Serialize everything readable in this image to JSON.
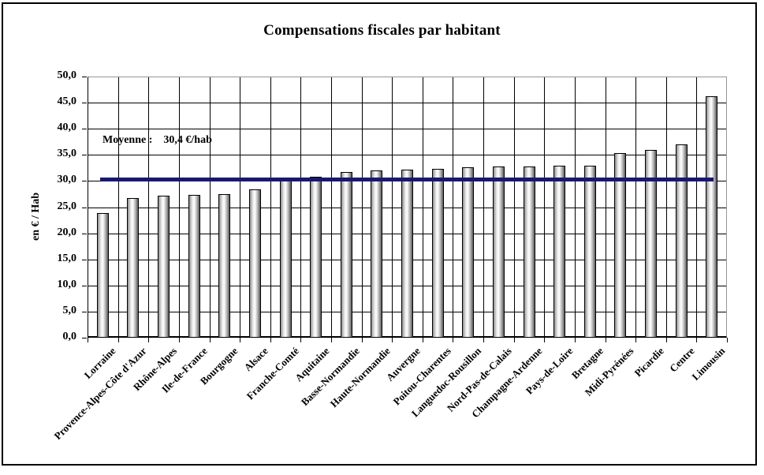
{
  "figure": {
    "title": "Compensations fiscales par habitant"
  },
  "annotation": {
    "label": "Moyenne :",
    "value": "30,4 €/hab"
  },
  "colors": {
    "mean_line": "#191970",
    "grid": "#000000",
    "plot_border_gray": "#969696",
    "bar_outline": "#000000",
    "bar_gradient": [
      "#8c8c8c",
      "#ffffff",
      "#5a5a5a"
    ],
    "text": "#000000",
    "background": "#ffffff"
  },
  "chart_data": {
    "type": "bar",
    "title": "Compensations fiscales par habitant",
    "xlabel": "",
    "ylabel": "en € / Hab",
    "ylim": [
      0,
      50
    ],
    "ytick_step": 5,
    "ytick_labels": [
      "0,0",
      "5,0",
      "10,0",
      "15,0",
      "20,0",
      "25,0",
      "30,0",
      "35,0",
      "40,0",
      "45,0",
      "50,0"
    ],
    "grid": true,
    "legend": "none",
    "categories": [
      "Lorraine",
      "Provence-Alpes-Côte d'Azur",
      "Rhône-Alpes",
      "Ile-de-France",
      "Bourgogne",
      "Alsace",
      "Franche-Comté",
      "Aquitaine",
      "Basse-Normandie",
      "Haute-Normandie",
      "Auvergne",
      "Poitou-Charentes",
      "Languedoc-Rousillon",
      "Nord-Pas-de-Calais",
      "Champagne-Ardenne",
      "Pays-de-Loire",
      "Bretagne",
      "Midi-Pyrénées",
      "Picardie",
      "Centre",
      "Limousin"
    ],
    "values": [
      23.9,
      26.8,
      27.2,
      27.3,
      27.5,
      28.4,
      30.3,
      30.8,
      31.7,
      32.1,
      32.2,
      32.4,
      32.7,
      32.8,
      32.8,
      32.9,
      33.0,
      35.3,
      36.0,
      37.0,
      46.3
    ],
    "mean_line": {
      "value": 30.4,
      "label": "Moyenne :  30,4 €/hab"
    }
  }
}
